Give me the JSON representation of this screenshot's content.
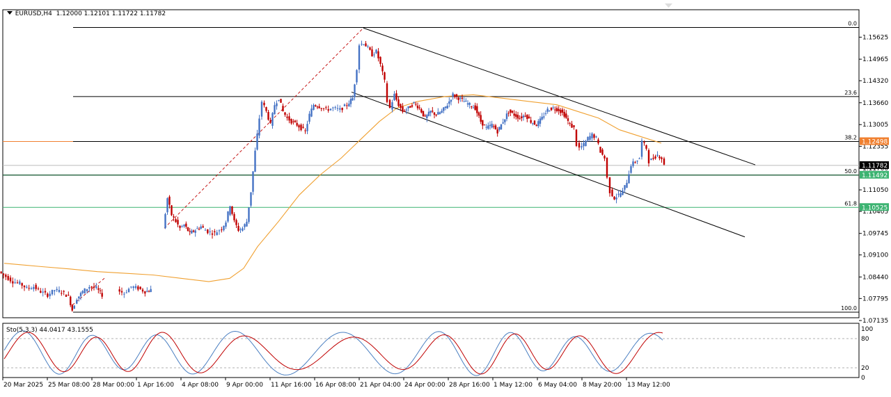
{
  "header": {
    "symbol_timeframe": "EURUSD,H4",
    "ohlc": "1.12000 1.12101 1.11722 1.11782"
  },
  "indicator": {
    "label": "Sto(5,3,3) 44.0417 43.1555"
  },
  "chart_data": [
    {
      "type": "candlestick",
      "symbol": "EURUSD",
      "timeframe": "H4",
      "open": 1.12,
      "high": 1.12101,
      "low": 1.11722,
      "close": 1.11782,
      "ylim": [
        1.07135,
        1.1628
      ],
      "price_ticks": [
        "1.15625",
        "1.14965",
        "1.14320",
        "1.13660",
        "1.13005",
        "1.12355",
        "1.11700",
        "1.11050",
        "1.10405",
        "1.09745",
        "1.09100",
        "1.08440",
        "1.07795",
        "1.07135"
      ],
      "x_tick_labels": [
        "20 Mar 2025",
        "25 Mar 08:00",
        "28 Mar 00:00",
        "1 Apr 16:00",
        "4 Apr 08:00",
        "9 Apr 00:00",
        "11 Apr 16:00",
        "16 Apr 08:00",
        "21 Apr 04:00",
        "24 Apr 00:00",
        "28 Apr 16:00",
        "1 May 12:00",
        "6 May 04:00",
        "8 May 20:00",
        "13 May 12:00"
      ],
      "price_path": [
        [
          0,
          1.086
        ],
        [
          10,
          1.0845
        ],
        [
          20,
          1.083
        ],
        [
          30,
          1.0825
        ],
        [
          40,
          1.081
        ],
        [
          50,
          1.0815
        ],
        [
          60,
          1.08
        ],
        [
          70,
          1.079
        ],
        [
          80,
          1.0805
        ],
        [
          90,
          1.08
        ],
        [
          100,
          1.0785
        ],
        [
          105,
          1.0745
        ],
        [
          112,
          1.078
        ],
        [
          120,
          1.08
        ],
        [
          130,
          1.0815
        ],
        [
          140,
          1.081
        ],
        [
          148,
          1.079
        ],
        [
          170,
          1.0805
        ],
        [
          180,
          1.0795
        ],
        [
          190,
          1.0815
        ],
        [
          200,
          1.081
        ],
        [
          210,
          1.08
        ],
        [
          218,
          1.0805
        ],
        [
          236,
          1.099
        ],
        [
          242,
          1.108
        ],
        [
          248,
          1.103
        ],
        [
          254,
          1.101
        ],
        [
          260,
          1.099
        ],
        [
          266,
          1.1
        ],
        [
          274,
          1.0975
        ],
        [
          282,
          1.0985
        ],
        [
          290,
          1.0995
        ],
        [
          300,
          1.098
        ],
        [
          310,
          1.0975
        ],
        [
          320,
          1.099
        ],
        [
          326,
          1.101
        ],
        [
          332,
          1.106
        ],
        [
          338,
          1.101
        ],
        [
          344,
          1.0985
        ],
        [
          350,
          1.099
        ],
        [
          356,
          1.101
        ],
        [
          362,
          1.11
        ],
        [
          368,
          1.122
        ],
        [
          374,
          1.132
        ],
        [
          378,
          1.137
        ],
        [
          384,
          1.134
        ],
        [
          390,
          1.13
        ],
        [
          396,
          1.136
        ],
        [
          402,
          1.138
        ],
        [
          408,
          1.134
        ],
        [
          414,
          1.132
        ],
        [
          420,
          1.131
        ],
        [
          428,
          1.13
        ],
        [
          434,
          1.129
        ],
        [
          440,
          1.128
        ],
        [
          446,
          1.133
        ],
        [
          452,
          1.136
        ],
        [
          460,
          1.1355
        ],
        [
          470,
          1.1345
        ],
        [
          480,
          1.135
        ],
        [
          490,
          1.1345
        ],
        [
          500,
          1.136
        ],
        [
          508,
          1.138
        ],
        [
          514,
          1.147
        ],
        [
          518,
          1.154
        ],
        [
          524,
          1.1545
        ],
        [
          530,
          1.153
        ],
        [
          536,
          1.151
        ],
        [
          542,
          1.152
        ],
        [
          548,
          1.148
        ],
        [
          554,
          1.143
        ],
        [
          558,
          1.137
        ],
        [
          562,
          1.135
        ],
        [
          568,
          1.139
        ],
        [
          574,
          1.136
        ],
        [
          580,
          1.134
        ],
        [
          588,
          1.135
        ],
        [
          596,
          1.1365
        ],
        [
          604,
          1.135
        ],
        [
          612,
          1.132
        ],
        [
          620,
          1.134
        ],
        [
          628,
          1.133
        ],
        [
          636,
          1.134
        ],
        [
          644,
          1.136
        ],
        [
          652,
          1.139
        ],
        [
          660,
          1.138
        ],
        [
          668,
          1.137
        ],
        [
          676,
          1.136
        ],
        [
          684,
          1.135
        ],
        [
          692,
          1.131
        ],
        [
          700,
          1.129
        ],
        [
          708,
          1.13
        ],
        [
          716,
          1.128
        ],
        [
          724,
          1.131
        ],
        [
          732,
          1.134
        ],
        [
          740,
          1.133
        ],
        [
          748,
          1.132
        ],
        [
          756,
          1.133
        ],
        [
          764,
          1.131
        ],
        [
          772,
          1.13
        ],
        [
          780,
          1.132
        ],
        [
          788,
          1.1345
        ],
        [
          796,
          1.135
        ],
        [
          804,
          1.1345
        ],
        [
          812,
          1.133
        ],
        [
          820,
          1.13
        ],
        [
          826,
          1.129
        ],
        [
          830,
          1.124
        ],
        [
          834,
          1.123
        ],
        [
          840,
          1.124
        ],
        [
          846,
          1.126
        ],
        [
          852,
          1.127
        ],
        [
          858,
          1.126
        ],
        [
          864,
          1.122
        ],
        [
          870,
          1.12
        ],
        [
          874,
          1.114
        ],
        [
          878,
          1.11
        ],
        [
          884,
          1.108
        ],
        [
          890,
          1.109
        ],
        [
          896,
          1.11
        ],
        [
          902,
          1.113
        ],
        [
          908,
          1.118
        ],
        [
          914,
          1.119
        ],
        [
          920,
          1.12
        ],
        [
          924,
          1.125
        ],
        [
          930,
          1.123
        ],
        [
          934,
          1.119
        ],
        [
          940,
          1.12
        ],
        [
          946,
          1.121
        ],
        [
          952,
          1.12
        ],
        [
          956,
          1.1178
        ]
      ],
      "moving_average_path": [
        [
          6,
          1.0885
        ],
        [
          60,
          1.0875
        ],
        [
          100,
          1.0868
        ],
        [
          140,
          1.086
        ],
        [
          180,
          1.0855
        ],
        [
          220,
          1.085
        ],
        [
          260,
          1.084
        ],
        [
          300,
          1.083
        ],
        [
          330,
          1.084
        ],
        [
          350,
          1.087
        ],
        [
          370,
          1.0935
        ],
        [
          400,
          1.101
        ],
        [
          430,
          1.109
        ],
        [
          460,
          1.115
        ],
        [
          490,
          1.12
        ],
        [
          520,
          1.126
        ],
        [
          545,
          1.131
        ],
        [
          570,
          1.135
        ],
        [
          600,
          1.137
        ],
        [
          640,
          1.1385
        ],
        [
          680,
          1.139
        ],
        [
          720,
          1.138
        ],
        [
          760,
          1.137
        ],
        [
          800,
          1.136
        ],
        [
          830,
          1.134
        ],
        [
          860,
          1.132
        ],
        [
          890,
          1.1285
        ],
        [
          920,
          1.1265
        ],
        [
          950,
          1.1245
        ]
      ],
      "fibonacci": [
        {
          "level": "0.0",
          "price": 1.15915
        },
        {
          "level": "23.6",
          "price": 1.13845
        },
        {
          "level": "38.2",
          "price": 1.12498
        },
        {
          "level": "50.0",
          "price": 1.11492
        },
        {
          "level": "61.8",
          "price": 1.10525
        },
        {
          "level": "100.0",
          "price": 1.07385
        }
      ],
      "price_labels": [
        {
          "text": "1.12498",
          "price": 1.12498,
          "bg": "#f08030"
        },
        {
          "text": "1.11782",
          "price": 1.11782,
          "bg": "#000000"
        },
        {
          "text": "1.11492",
          "price": 1.11492,
          "bg": "#3cb371"
        },
        {
          "text": "1.10525",
          "price": 1.10525,
          "bg": "#3cb371"
        }
      ],
      "channel_lines": [
        {
          "from": [
            522,
            1.159
          ],
          "to": [
            1085,
            1.118
          ]
        },
        {
          "from": [
            505,
            1.1398
          ],
          "to": [
            1070,
            1.0964
          ]
        }
      ],
      "colors": {
        "bull": "#4472c4",
        "bear": "#c00000",
        "ma": "#f0a030",
        "fib": "#000000",
        "level_50": "#3cb371",
        "stoch_main": "#4a7fc1",
        "stoch_signal": "#c00000"
      }
    },
    {
      "type": "line",
      "name": "Sto(5,3,3)",
      "main": 44.0417,
      "signal": 43.1555,
      "ylim": [
        0,
        100
      ],
      "levels": [
        20,
        80
      ],
      "y_tick_labels": [
        "100",
        "80",
        "20",
        "0"
      ]
    }
  ]
}
